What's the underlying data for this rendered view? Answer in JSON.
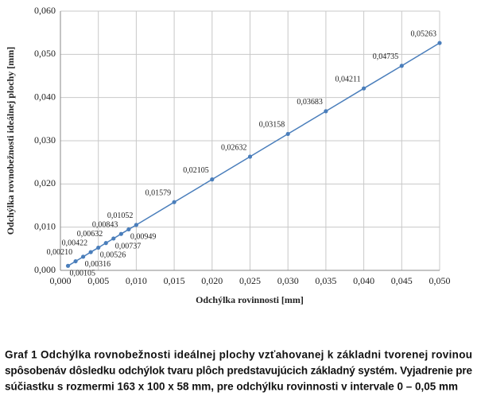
{
  "chart_data": {
    "type": "line",
    "x_label": "Odchýlka rovinnosti [mm]",
    "y_label": "Odchýlka rovnobežnosti ideálnej plochy [mm]",
    "caption": [
      "Graf 1 Odchýlka rovnobežnosti ideálnej plochy vzťahovanej k základni tvorenej rovinou",
      "spôsobenáv dôsledku odchýlok tvaru plôch predstavujúcich základný systém. Vyjadrenie pre",
      "súčiastku s rozmermi 163 x 100 x 58 mm, pre odchýlku rovinnosti v intervale 0 – 0,05 mm"
    ],
    "x": [
      0.001,
      0.002,
      0.003,
      0.004,
      0.005,
      0.006,
      0.007,
      0.008,
      0.009,
      0.01,
      0.015,
      0.02,
      0.025,
      0.03,
      0.035,
      0.04,
      0.045,
      0.05
    ],
    "series": [
      {
        "color": "#4a7ebb",
        "values": [
          0.00105,
          0.0021,
          0.00316,
          0.00422,
          0.00526,
          0.00632,
          0.00737,
          0.00843,
          0.00949,
          0.01052,
          0.01579,
          0.02105,
          0.02632,
          0.03158,
          0.03683,
          0.04211,
          0.04735,
          0.05263
        ],
        "value_labels": [
          "0,00105",
          "0,00210",
          "0,00316",
          "0,00422",
          "0,00526",
          "0,00632",
          "0,00737",
          "0,00843",
          "0,00949",
          "0,01052",
          "0,01579",
          "0,02105",
          "0,02632",
          "0,03158",
          "0,03683",
          "0,04211",
          "0,04735",
          "0,05263"
        ]
      }
    ],
    "xlim": [
      0,
      0.05
    ],
    "ylim": [
      0,
      0.06
    ],
    "xticks": [
      {
        "value": 0,
        "label": "0,000"
      },
      {
        "value": 0.005,
        "label": "0,005"
      },
      {
        "value": 0.01,
        "label": "0,010"
      },
      {
        "value": 0.015,
        "label": "0,015"
      },
      {
        "value": 0.02,
        "label": "0,020"
      },
      {
        "value": 0.025,
        "label": "0,025"
      },
      {
        "value": 0.03,
        "label": "0,030"
      },
      {
        "value": 0.035,
        "label": "0,035"
      },
      {
        "value": 0.04,
        "label": "0,040"
      },
      {
        "value": 0.045,
        "label": "0,045"
      },
      {
        "value": 0.05,
        "label": "0,050"
      }
    ],
    "yticks": [
      {
        "value": 0,
        "label": "0,000"
      },
      {
        "value": 0.01,
        "label": "0,010"
      },
      {
        "value": 0.02,
        "label": "0,020"
      },
      {
        "value": 0.03,
        "label": "0,030"
      },
      {
        "value": 0.04,
        "label": "0,040"
      },
      {
        "value": 0.05,
        "label": "0,050"
      },
      {
        "value": 0.06,
        "label": "0,060"
      }
    ],
    "grid": true
  }
}
